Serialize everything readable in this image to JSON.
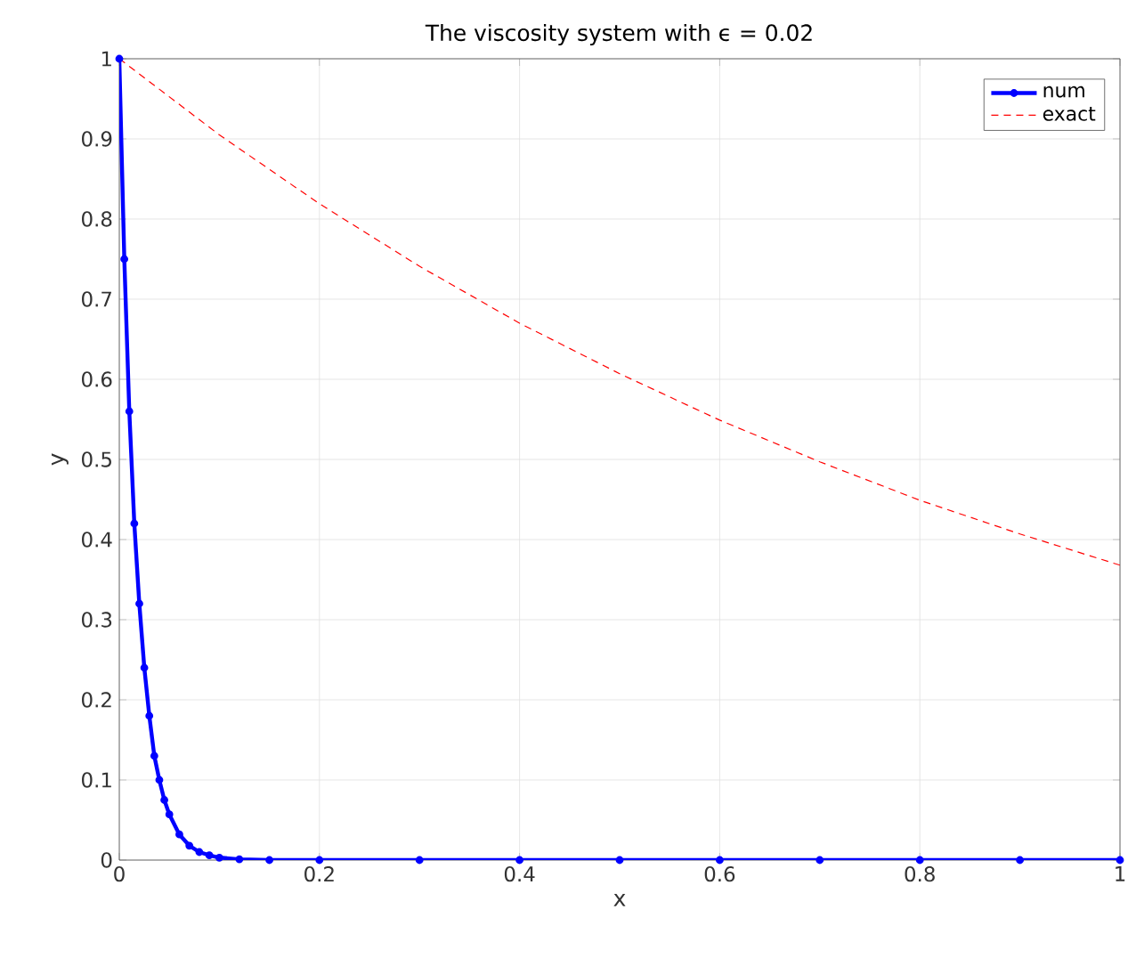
{
  "chart_data": {
    "type": "line",
    "title": "The viscosity system with ϵ = 0.02",
    "xlabel": "x",
    "ylabel": "y",
    "xlim": [
      0,
      1
    ],
    "ylim": [
      0,
      1
    ],
    "xticks": [
      0,
      0.2,
      0.4,
      0.6,
      0.8,
      1
    ],
    "yticks": [
      0,
      0.1,
      0.2,
      0.3,
      0.4,
      0.5,
      0.6,
      0.7,
      0.8,
      0.9,
      1
    ],
    "grid": true,
    "legend": "top right",
    "series": [
      {
        "name": "num",
        "color": "#0000ff",
        "marker": "circle",
        "line_style": "solid",
        "x": [
          0,
          0.005,
          0.01,
          0.015,
          0.02,
          0.025,
          0.03,
          0.035,
          0.04,
          0.045,
          0.05,
          0.06,
          0.07,
          0.08,
          0.09,
          0.1,
          0.12,
          0.15,
          0.2,
          0.3,
          0.4,
          0.5,
          0.6,
          0.7,
          0.8,
          0.9,
          1
        ],
        "values": [
          1,
          0.75,
          0.56,
          0.42,
          0.32,
          0.24,
          0.18,
          0.13,
          0.1,
          0.075,
          0.057,
          0.032,
          0.018,
          0.01,
          0.006,
          0.003,
          0.001,
          0,
          0,
          0,
          0,
          0,
          0,
          0,
          0,
          0,
          0
        ]
      },
      {
        "name": "exact",
        "color": "#ff0000",
        "marker": "none",
        "line_style": "dashed",
        "x": [
          0,
          0.1,
          0.2,
          0.3,
          0.4,
          0.5,
          0.6,
          0.7,
          0.8,
          0.9,
          1
        ],
        "values": [
          1,
          0.905,
          0.819,
          0.741,
          0.67,
          0.607,
          0.549,
          0.497,
          0.449,
          0.407,
          0.368
        ]
      }
    ]
  }
}
